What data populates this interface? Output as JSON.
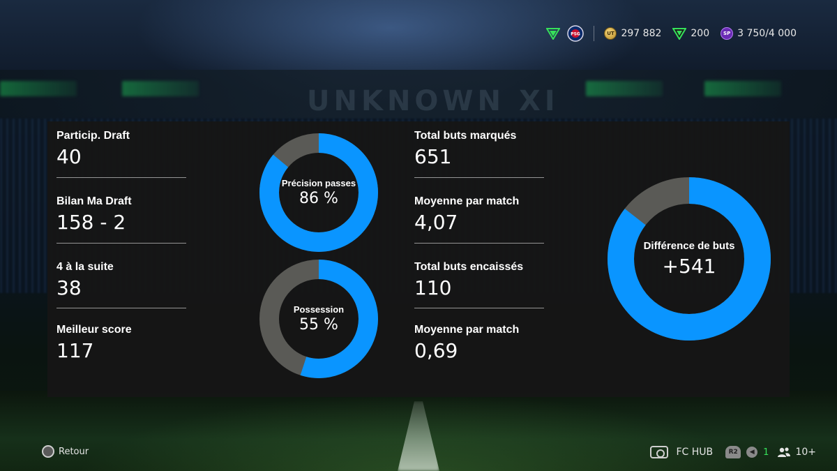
{
  "topbar": {
    "coins": "297 882",
    "points": "200",
    "sp": "3 750/4 000",
    "coin_icon_text": "UT",
    "sp_icon_text": "SP",
    "club_icon_text": "PSG"
  },
  "stats_left": [
    {
      "label": "Particip. Draft",
      "value": "40"
    },
    {
      "label": "Bilan Ma Draft",
      "value": "158 - 2"
    },
    {
      "label": "4 à la suite",
      "value": "38"
    },
    {
      "label": "Meilleur score",
      "value": "117"
    }
  ],
  "stats_right": [
    {
      "label": "Total buts marqués",
      "value": "651"
    },
    {
      "label": "Moyenne par match",
      "value": "4,07"
    },
    {
      "label": "Total buts encaissés",
      "value": "110"
    },
    {
      "label": "Moyenne par match",
      "value": "0,69"
    }
  ],
  "donuts": {
    "passes": {
      "label": "Précision passes",
      "value": "86 %",
      "fraction": 0.86
    },
    "possession": {
      "label": "Possession",
      "value": "55 %",
      "fraction": 0.55
    },
    "goal_diff": {
      "label": "Différence de buts",
      "value": "+541",
      "fraction": 0.855
    }
  },
  "colors": {
    "donut_fill": "#0a95ff",
    "donut_rest": "#5a5a56",
    "accent_green": "#36e15a"
  },
  "bottom": {
    "back_label": "Retour",
    "hub_label": "FC HUB",
    "r2_label": "R2",
    "mic_count": "1",
    "friends_count": "10+"
  }
}
